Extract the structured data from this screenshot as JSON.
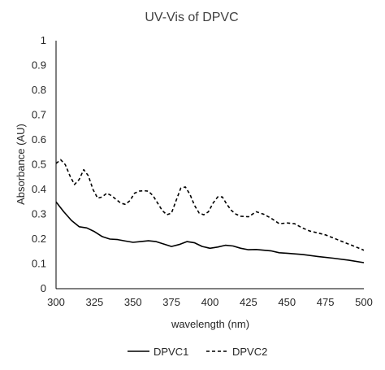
{
  "chart_data": {
    "type": "line",
    "title": "UV-Vis of DPVC",
    "xlabel": "wavelength (nm)",
    "ylabel": "Absorbance (AU)",
    "xlim": [
      300,
      500
    ],
    "ylim": [
      0,
      1
    ],
    "xticks": [
      300,
      325,
      350,
      375,
      400,
      425,
      450,
      475,
      500
    ],
    "yticks": [
      0,
      0.1,
      0.2,
      0.3,
      0.4,
      0.5,
      0.6,
      0.7,
      0.8,
      0.9,
      1
    ],
    "xtick_labels": [
      "300",
      "325",
      "350",
      "375",
      "400",
      "425",
      "450",
      "475",
      "500"
    ],
    "ytick_labels": [
      "0",
      "0.1",
      "0.2",
      "0.3",
      "0.4",
      "0.5",
      "0.6",
      "0.7",
      "0.8",
      "0.9",
      "1"
    ],
    "grid": false,
    "legend_position": "bottom",
    "colors": {
      "axis": "#000000",
      "text": "#262626",
      "series": "#000000"
    },
    "series": [
      {
        "name": "DPVC1",
        "style": "solid",
        "x": [
          300,
          305,
          310,
          315,
          320,
          325,
          330,
          335,
          340,
          345,
          350,
          355,
          360,
          365,
          370,
          375,
          380,
          385,
          390,
          395,
          400,
          405,
          410,
          415,
          420,
          425,
          430,
          435,
          440,
          445,
          450,
          460,
          470,
          480,
          490,
          500
        ],
        "y": [
          0.35,
          0.31,
          0.275,
          0.25,
          0.245,
          0.23,
          0.21,
          0.2,
          0.198,
          0.192,
          0.187,
          0.19,
          0.193,
          0.19,
          0.18,
          0.17,
          0.178,
          0.19,
          0.185,
          0.17,
          0.163,
          0.168,
          0.175,
          0.172,
          0.163,
          0.157,
          0.158,
          0.155,
          0.152,
          0.145,
          0.143,
          0.138,
          0.13,
          0.123,
          0.115,
          0.105
        ]
      },
      {
        "name": "DPVC2",
        "style": "dashed",
        "x": [
          300,
          303,
          306,
          309,
          312,
          315,
          318,
          321,
          324,
          327,
          330,
          333,
          336,
          339,
          342,
          345,
          348,
          351,
          354,
          357,
          360,
          363,
          366,
          369,
          372,
          375,
          378,
          381,
          384,
          387,
          390,
          393,
          396,
          399,
          402,
          405,
          408,
          411,
          414,
          417,
          420,
          425,
          430,
          435,
          440,
          445,
          450,
          455,
          460,
          465,
          470,
          475,
          480,
          485,
          490,
          495,
          500
        ],
        "y": [
          0.505,
          0.52,
          0.5,
          0.455,
          0.42,
          0.44,
          0.48,
          0.455,
          0.4,
          0.365,
          0.37,
          0.385,
          0.375,
          0.36,
          0.345,
          0.34,
          0.355,
          0.385,
          0.393,
          0.395,
          0.393,
          0.375,
          0.345,
          0.315,
          0.298,
          0.305,
          0.355,
          0.405,
          0.41,
          0.38,
          0.335,
          0.305,
          0.298,
          0.31,
          0.345,
          0.37,
          0.37,
          0.34,
          0.315,
          0.3,
          0.292,
          0.29,
          0.31,
          0.3,
          0.283,
          0.262,
          0.265,
          0.262,
          0.245,
          0.232,
          0.225,
          0.217,
          0.205,
          0.192,
          0.18,
          0.168,
          0.155
        ]
      }
    ]
  }
}
